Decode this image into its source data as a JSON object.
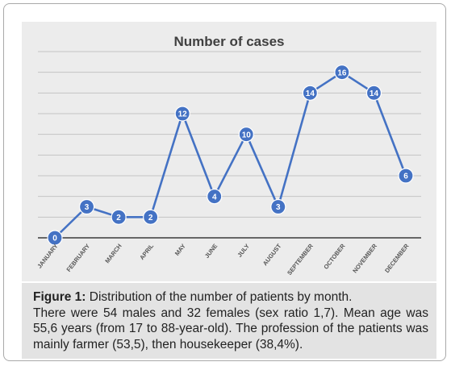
{
  "chart_data": {
    "type": "line",
    "title": "Number of cases",
    "categories": [
      "JANUARY",
      "FEBRUARY",
      "MARCH",
      "APRIL",
      "MAY",
      "JUNE",
      "JULY",
      "AUGUST",
      "SEPTEMBER",
      "OCTOBER",
      "NOVEMBER",
      "DECEMBER"
    ],
    "series": [
      {
        "values": [
          0,
          3,
          2,
          2,
          12,
          4,
          10,
          3,
          14,
          16,
          14,
          6
        ]
      }
    ],
    "ylim": [
      0,
      18
    ],
    "grid": true,
    "legend": "none",
    "colors": {
      "line": "#4472c4",
      "marker_fill": "#4472c4",
      "marker_text": "#ffffff",
      "grid": "#c4c4c4",
      "plot_bg": "#ececec"
    }
  },
  "caption": {
    "label": "Figure 1:",
    "line1": " Distribution of the number of patients by month.",
    "line2": " There were 54 males and 32 females (sex ratio 1,7). Mean age was 55,6 years (from 17 to 88-year-old). The profession of the patients was mainly farmer (53,5), then housekeeper (38,4%)."
  }
}
